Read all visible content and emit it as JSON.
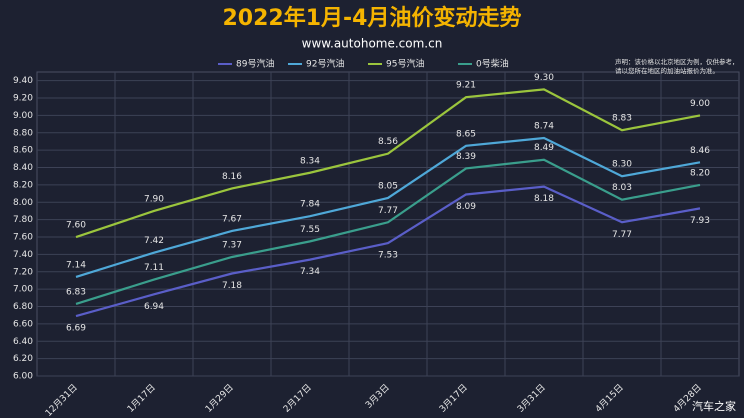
{
  "chart_data": {
    "type": "line",
    "title": "2022年1月-4月油价变动走势",
    "subtitle": "www.autohome.com.cn",
    "note": "声明：该价格以北京地区为例，仅供参考，请以您所在地区的加油站报价为准。",
    "watermark": "汽车之家",
    "categories": [
      "12月31日",
      "1月17日",
      "1月29日",
      "2月17日",
      "3月3日",
      "3月17日",
      "3月31日",
      "4月15日",
      "4月28日"
    ],
    "series": [
      {
        "name": "89号汽油",
        "color": "#5a5ec8",
        "values": [
          6.69,
          6.94,
          7.18,
          7.34,
          7.53,
          8.09,
          8.18,
          7.77,
          7.93
        ],
        "value_labels": [
          "6.69",
          "6.94",
          "7.18",
          "7.34",
          "7.53",
          "8.09",
          "8.18",
          "7.77",
          "7.93"
        ]
      },
      {
        "name": "92号汽油",
        "color": "#4fa8d8",
        "values": [
          7.14,
          7.42,
          7.67,
          7.84,
          8.05,
          8.65,
          8.74,
          8.3,
          8.46
        ],
        "value_labels": [
          "7.14",
          "7.42",
          "7.67",
          "7.84",
          "8.05",
          "8.65",
          "8.74",
          "8.30",
          "8.46"
        ]
      },
      {
        "name": "95号汽油",
        "color": "#9bc53d",
        "values": [
          7.6,
          7.9,
          8.16,
          8.34,
          8.56,
          9.21,
          9.3,
          8.83,
          9.0
        ],
        "value_labels": [
          "7.60",
          "7.90",
          "8.16",
          "8.34",
          "8.56",
          "9.21",
          "9.30",
          "8.83",
          "9.00"
        ]
      },
      {
        "name": "0号柴油",
        "color": "#3a9e8c",
        "values": [
          6.83,
          7.11,
          7.37,
          7.55,
          7.77,
          8.39,
          8.49,
          8.03,
          8.2
        ],
        "value_labels": [
          "6.83",
          "7.11",
          "7.37",
          "7.55",
          "7.77",
          "8.39",
          "8.49",
          "8.03",
          "8.20"
        ]
      }
    ],
    "ylim": [
      6.0,
      9.5
    ],
    "yticks": [
      {
        "value": 6.0,
        "label": "6.00"
      },
      {
        "value": 6.2,
        "label": "6.20"
      },
      {
        "value": 6.4,
        "label": "6.40"
      },
      {
        "value": 6.6,
        "label": "6.60"
      },
      {
        "value": 6.8,
        "label": "6.80"
      },
      {
        "value": 7.0,
        "label": "7.00"
      },
      {
        "value": 7.2,
        "label": "7.20"
      },
      {
        "value": 7.4,
        "label": "7.40"
      },
      {
        "value": 7.6,
        "label": "7.60"
      },
      {
        "value": 7.8,
        "label": "7.80"
      },
      {
        "value": 8.0,
        "label": "8.00"
      },
      {
        "value": 8.2,
        "label": "8.20"
      },
      {
        "value": 8.4,
        "label": "8.40"
      },
      {
        "value": 8.6,
        "label": "8.60"
      },
      {
        "value": 8.8,
        "label": "8.80"
      },
      {
        "value": 9.0,
        "label": "9.00"
      },
      {
        "value": 9.2,
        "label": "9.20"
      },
      {
        "value": 9.4,
        "label": "9.40"
      }
    ],
    "grid": true
  }
}
